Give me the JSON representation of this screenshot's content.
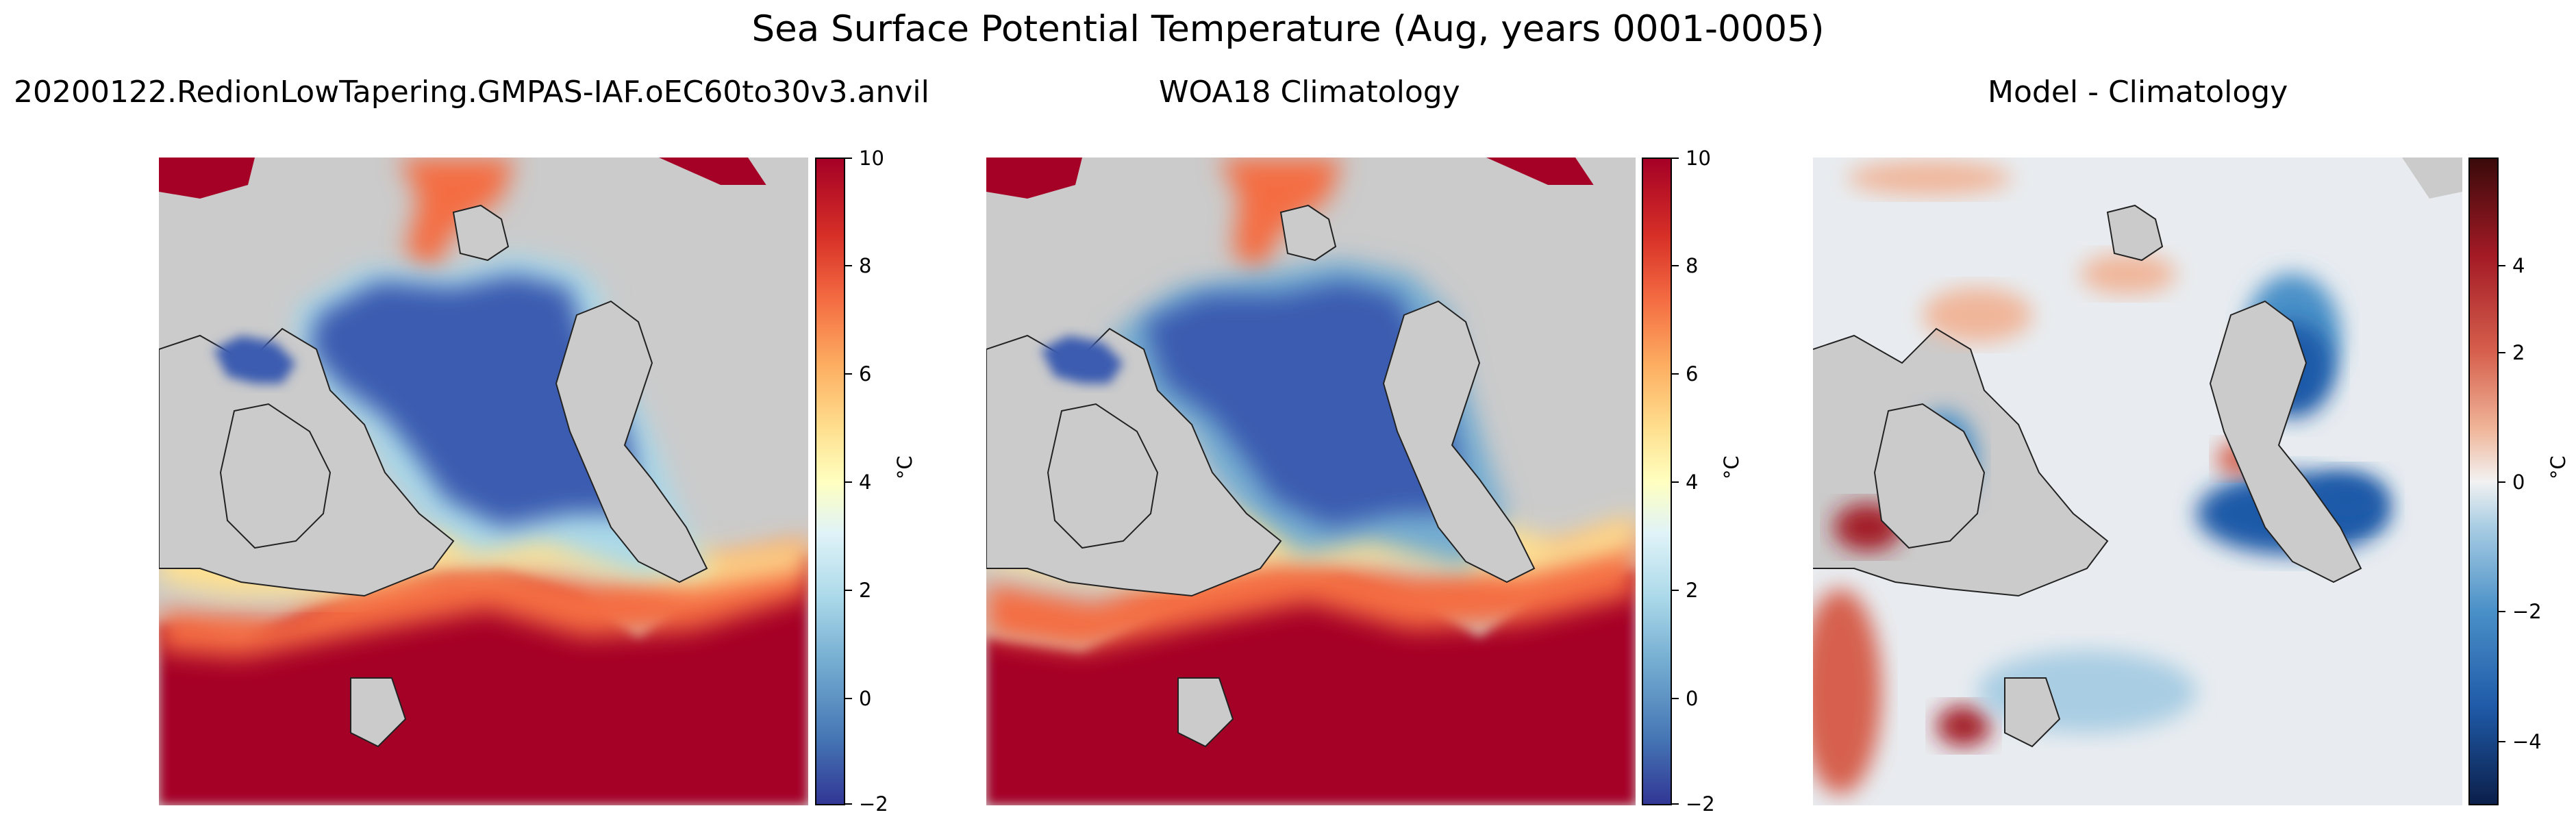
{
  "figure": {
    "title": "Sea Surface Potential Temperature (Aug, years 0001-0005)"
  },
  "panels": [
    {
      "subtitle": "20200122.RedionLowTapering.GMPAS-IAF.oEC60to30v3.anvil",
      "colorbar": {
        "unit": "°C",
        "ticks": [
          "10",
          "8",
          "6",
          "4",
          "2",
          "0",
          "−2"
        ]
      }
    },
    {
      "subtitle": "WOA18 Climatology",
      "colorbar": {
        "unit": "°C",
        "ticks": [
          "10",
          "8",
          "6",
          "4",
          "2",
          "0",
          "−2"
        ]
      }
    },
    {
      "subtitle": "Model - Climatology",
      "colorbar": {
        "unit": "°C",
        "ticks": [
          "4",
          "2",
          "0",
          "−2",
          "−4"
        ]
      }
    }
  ],
  "colors": {
    "land": "#cbcbcb",
    "cold": "#3a5bb0",
    "warm": "#a50026",
    "neutral_diff": "#f2f2f2"
  }
}
